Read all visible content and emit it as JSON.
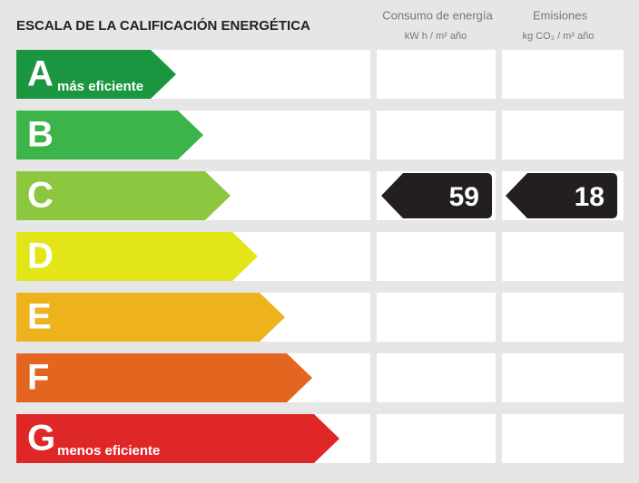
{
  "header": {
    "title": "ESCALA DE LA CALIFICACIÓN ENERGÉTICA"
  },
  "columns": [
    {
      "name": "Consumo de energía",
      "unit": "kW h / m² año"
    },
    {
      "name": "Emisiones",
      "unit": "kg CO₂ / m² año"
    }
  ],
  "ratings": [
    {
      "letter": "A",
      "note": "más eficiente",
      "color": "#1a9641"
    },
    {
      "letter": "B",
      "color": "#3cb44a"
    },
    {
      "letter": "C",
      "color": "#8dc63f"
    },
    {
      "letter": "D",
      "color": "#e2e619"
    },
    {
      "letter": "E",
      "color": "#eeb21d"
    },
    {
      "letter": "F",
      "color": "#e3651f"
    },
    {
      "letter": "G",
      "note": "menos eficiente",
      "color": "#e02727"
    }
  ],
  "result": {
    "rating": "C",
    "consumption": 59,
    "emissions": 18
  }
}
